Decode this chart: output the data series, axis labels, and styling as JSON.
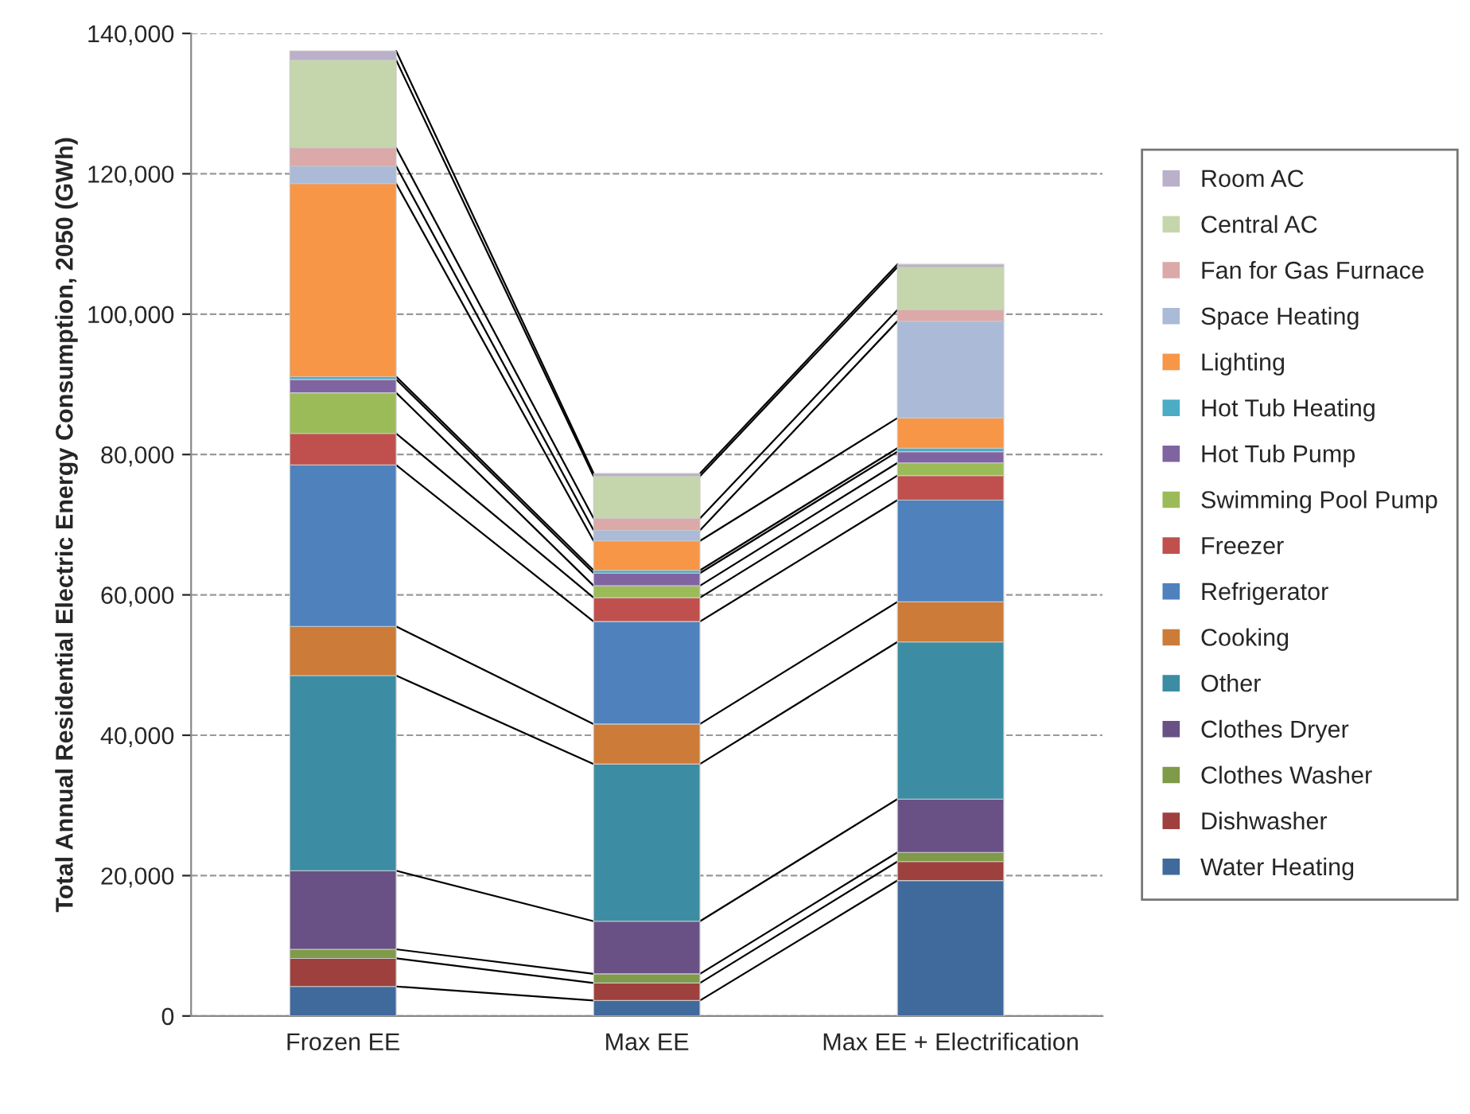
{
  "chart_data": {
    "type": "bar",
    "stacked": true,
    "ylabel": "Total Annual Residential Electric Energy Consumption, 2050 (GWh)",
    "categories": [
      "Frozen EE",
      "Max EE",
      "Max EE + Electrification"
    ],
    "series": [
      {
        "name": "Water Heating",
        "color": "#40699c",
        "values": [
          4200,
          2200,
          19300
        ]
      },
      {
        "name": "Dishwasher",
        "color": "#9e413e",
        "values": [
          4000,
          2500,
          2700
        ]
      },
      {
        "name": "Clothes Washer",
        "color": "#7f9a48",
        "values": [
          1300,
          1300,
          1300
        ]
      },
      {
        "name": "Clothes Dryer",
        "color": "#695185",
        "values": [
          11200,
          7500,
          7600
        ]
      },
      {
        "name": "Other",
        "color": "#3c8da3",
        "values": [
          27800,
          22400,
          22400
        ]
      },
      {
        "name": "Cooking",
        "color": "#cc7b38",
        "values": [
          7000,
          5700,
          5700
        ]
      },
      {
        "name": "Refrigerator",
        "color": "#4f81bd",
        "values": [
          23000,
          14600,
          14500
        ]
      },
      {
        "name": "Freezer",
        "color": "#c0504d",
        "values": [
          4500,
          3400,
          3500
        ]
      },
      {
        "name": "Swimming Pool Pump",
        "color": "#9bbb59",
        "values": [
          5800,
          1700,
          1800
        ]
      },
      {
        "name": "Hot Tub Pump",
        "color": "#8064a2",
        "values": [
          1900,
          1800,
          1600
        ]
      },
      {
        "name": "Hot Tub Heating",
        "color": "#4bacc6",
        "values": [
          400,
          400,
          500
        ]
      },
      {
        "name": "Lighting",
        "color": "#f79646",
        "values": [
          27500,
          4200,
          4300
        ]
      },
      {
        "name": "Space Heating",
        "color": "#aabad7",
        "values": [
          2500,
          1500,
          13800
        ]
      },
      {
        "name": "Fan for Gas Furnace",
        "color": "#dba9a8",
        "values": [
          2600,
          1700,
          1600
        ]
      },
      {
        "name": "Central AC",
        "color": "#c6d6ac",
        "values": [
          12500,
          6000,
          6100
        ]
      },
      {
        "name": "Room AC",
        "color": "#bab0c9",
        "values": [
          1300,
          400,
          400
        ]
      }
    ],
    "ylim": [
      0,
      140000
    ],
    "yticks": [
      {
        "value": 0,
        "label": "0"
      },
      {
        "value": 20000,
        "label": "20,000"
      },
      {
        "value": 40000,
        "label": "40,000"
      },
      {
        "value": 60000,
        "label": "60,000"
      },
      {
        "value": 80000,
        "label": "80,000"
      },
      {
        "value": 100000,
        "label": "100,000"
      },
      {
        "value": 120000,
        "label": "120,000"
      },
      {
        "value": 140000,
        "label": "140,000"
      }
    ],
    "grid": "y",
    "legend": "right"
  }
}
